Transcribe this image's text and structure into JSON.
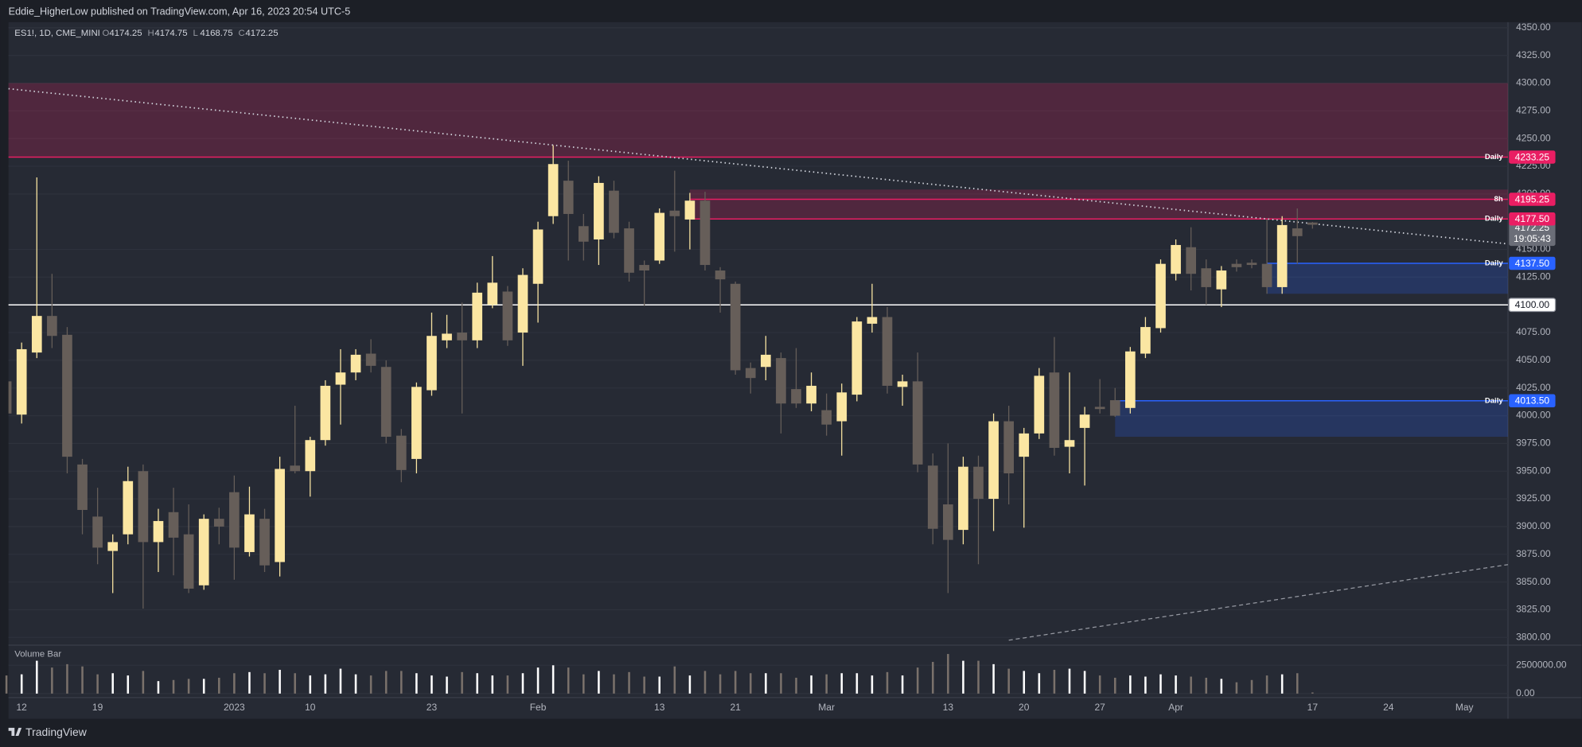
{
  "header": "Eddie_HigherLow published on TradingView.com, Apr 16, 2023 20:54 UTC-5",
  "footer": "TradingView",
  "chart_data": {
    "type": "candlestick",
    "symbol": "ES1!, 1D, CME_MINI",
    "ohlc_labels": [
      "O",
      "H",
      "L",
      "C"
    ],
    "categories": [
      null,
      "12",
      null,
      null,
      null,
      null,
      "19",
      null,
      null,
      null,
      null,
      null,
      null,
      null,
      null,
      "2023",
      null,
      null,
      null,
      null,
      "10",
      null,
      null,
      null,
      null,
      null,
      null,
      null,
      "23",
      null,
      null,
      null,
      null,
      null,
      null,
      "Feb",
      null,
      null,
      null,
      null,
      null,
      null,
      null,
      "13",
      null,
      null,
      null,
      null,
      "21",
      null,
      null,
      null,
      null,
      null,
      "Mar",
      null,
      null,
      null,
      null,
      null,
      null,
      null,
      "13",
      null,
      null,
      null,
      null,
      "20",
      null,
      null,
      null,
      null,
      "27",
      null,
      null,
      null,
      null,
      "Apr",
      null,
      null,
      null,
      null,
      null,
      null,
      null,
      null,
      "17",
      null,
      null,
      null,
      null,
      "24",
      null,
      null,
      null,
      null,
      "May"
    ],
    "open": [
      4031,
      4001,
      4057,
      4090,
      4073,
      3956,
      3909,
      3878,
      3893,
      3950,
      3886,
      3913,
      3893,
      3847,
      3907,
      3931,
      3877,
      3907,
      3868,
      3955,
      3950,
      3978,
      4028,
      4039,
      4056,
      4044,
      3982,
      3961,
      4023,
      4068,
      4075,
      4068,
      4100,
      4112,
      4075,
      4119,
      4180,
      4212,
      4171,
      4159,
      4203,
      4169,
      4136,
      4140,
      4185,
      4177,
      4194,
      4131,
      4119,
      4043,
      4044,
      4052,
      4024,
      4011,
      4005,
      3995,
      4019,
      4083,
      4089,
      4026,
      4031,
      3955,
      3920,
      3897,
      3954,
      3925,
      3995,
      3963,
      3984,
      4039,
      3972,
      3989,
      4008,
      4014,
      4007,
      4056,
      4079,
      4128,
      4152,
      4133,
      4114,
      4137,
      4138,
      4137,
      4116,
      4169,
      4174.25,
      null,
      null,
      null,
      null,
      null,
      null,
      null,
      null,
      null,
      null
    ],
    "high": [
      4035,
      4066,
      4215,
      4128,
      4080,
      3961,
      3935,
      3893,
      3954,
      3956,
      3916,
      3935,
      3920,
      3911,
      3917,
      3946,
      3936,
      3916,
      3963,
      4009,
      3981,
      4032,
      4060,
      4060,
      4069,
      4050,
      3988,
      4030,
      4093,
      4091,
      4102,
      4120,
      4144,
      4117,
      4133,
      4175,
      4244,
      4230,
      4182,
      4216,
      4212,
      4175,
      4140,
      4187,
      4221,
      4201,
      4202,
      4134,
      4121,
      4048,
      4072,
      4057,
      4061,
      4039,
      4020,
      4029,
      4089,
      4119,
      4098,
      4037,
      4057,
      3966,
      3975,
      3963,
      3964,
      4002,
      4009,
      3989,
      4043,
      4071,
      4039,
      4008,
      4033,
      4025,
      4062,
      4089,
      4141,
      4159,
      4170,
      4141,
      4135,
      4141,
      4141,
      4177,
      4180,
      4187,
      4174.75,
      null,
      null,
      null,
      null,
      null,
      null,
      null,
      null,
      null,
      null
    ],
    "low": [
      3998,
      3993,
      4052,
      4061,
      3948,
      3893,
      3866,
      3840,
      3884,
      3826,
      3859,
      3856,
      3840,
      3843,
      3884,
      3852,
      3873,
      3859,
      3855,
      3948,
      3927,
      3973,
      3992,
      4032,
      4039,
      3975,
      3940,
      3948,
      4018,
      4061,
      4002,
      4061,
      4097,
      4063,
      4045,
      4084,
      4173,
      4140,
      4140,
      4136,
      4160,
      4121,
      4099,
      4137,
      4148,
      4150,
      4131,
      4093,
      4037,
      4020,
      4032,
      3984,
      4007,
      4004,
      3982,
      3964,
      4013,
      4075,
      4020,
      4009,
      3949,
      3884,
      3840,
      3884,
      3866,
      3896,
      3920,
      3899,
      3979,
      3964,
      3948,
      3937,
      4002,
      3999,
      4002,
      4052,
      4075,
      4122,
      4113,
      4100,
      4098,
      4130,
      4133,
      4110,
      4110,
      4137,
      4168.75,
      null,
      null,
      null,
      null,
      null,
      null,
      null,
      null,
      null,
      null
    ],
    "close": [
      4002,
      4060,
      4090,
      4072,
      3963,
      3915,
      3881,
      3886,
      3941,
      3886,
      3905,
      3890,
      3844,
      3907,
      3900,
      3881,
      3911,
      3865,
      3952,
      3950,
      3978,
      4027,
      4039,
      4055,
      4045,
      3981,
      3951,
      4026,
      4072,
      4074,
      4068,
      4111,
      4120,
      4068,
      4127,
      4168,
      4227,
      4182,
      4157,
      4210,
      4165,
      4129,
      4131,
      4183,
      4180,
      4194,
      4136,
      4123,
      4041,
      4034,
      4055,
      4011,
      4011,
      4027,
      3992,
      4021,
      4085,
      4089,
      4027,
      4031,
      3956,
      3898,
      3888,
      3954,
      3925,
      3995,
      3948,
      3984,
      4036,
      3971,
      3978,
      4001,
      4006,
      4000,
      4058,
      4080,
      4137,
      4154,
      4128,
      4116,
      4131,
      4134,
      4136,
      4116,
      4172,
      4162,
      4172.25,
      null,
      null,
      null,
      null,
      null,
      null,
      null,
      null,
      null,
      null
    ],
    "up_color": "#fbe6a2",
    "down_color": "#665e59",
    "ylim": [
      3793,
      4355
    ],
    "yticks": [
      {
        "value": 4350,
        "label": "4350.00"
      },
      {
        "value": 4325,
        "label": "4325.00"
      },
      {
        "value": 4300,
        "label": "4300.00"
      },
      {
        "value": 4275,
        "label": "4275.00"
      },
      {
        "value": 4250,
        "label": "4250.00"
      },
      {
        "value": 4225,
        "label": "4225.00"
      },
      {
        "value": 4200,
        "label": "4200.00"
      },
      {
        "value": 4150,
        "label": "4150.00"
      },
      {
        "value": 4125,
        "label": "4125.00"
      },
      {
        "value": 4075,
        "label": "4075.00"
      },
      {
        "value": 4050,
        "label": "4050.00"
      },
      {
        "value": 4025,
        "label": "4025.00"
      },
      {
        "value": 4000,
        "label": "4000.00"
      },
      {
        "value": 3975,
        "label": "3975.00"
      },
      {
        "value": 3950,
        "label": "3950.00"
      },
      {
        "value": 3925,
        "label": "3925.00"
      },
      {
        "value": 3900,
        "label": "3900.00"
      },
      {
        "value": 3875,
        "label": "3875.00"
      },
      {
        "value": 3850,
        "label": "3850.00"
      },
      {
        "value": 3825,
        "label": "3825.00"
      },
      {
        "value": 3800,
        "label": "3800.00"
      }
    ],
    "grid": true,
    "countdown": "19:05:43",
    "volume": {
      "title": "Volume Bar",
      "values": [
        1600000,
        1700000,
        2900000,
        2300000,
        2600000,
        2400000,
        1700000,
        1800000,
        1600000,
        2000000,
        1100000,
        1200000,
        1300000,
        1300000,
        1400000,
        1800000,
        1900000,
        1800000,
        2100000,
        1800000,
        1600000,
        1700000,
        2200000,
        1700000,
        1600000,
        2000000,
        2000000,
        1800000,
        1600000,
        1500000,
        1900000,
        1800000,
        1600000,
        1600000,
        1800000,
        2300000,
        2500000,
        2300000,
        1700000,
        2000000,
        1700000,
        1900000,
        1500000,
        1500000,
        2400000,
        1600000,
        2000000,
        1700000,
        2000000,
        1800000,
        1800000,
        1800000,
        1400000,
        1600000,
        1700000,
        1800000,
        1800000,
        1600000,
        1900000,
        1600000,
        2300000,
        2800000,
        3500000,
        2900000,
        2900000,
        2600000,
        2200000,
        2000000,
        1800000,
        2100000,
        2200000,
        2000000,
        1600000,
        1400000,
        1600000,
        1500000,
        1700000,
        1600000,
        1500000,
        1400000,
        1300000,
        1000000,
        1200000,
        1600000,
        1700000,
        1800000,
        100000,
        null,
        null,
        null,
        null,
        null,
        null,
        null,
        null,
        null,
        null
      ],
      "up_color": "#ffffff",
      "down_color": "#7a716b",
      "ylim": [
        0,
        4100000
      ],
      "yticks": [
        {
          "value": 2500000,
          "label": "2500000.00"
        },
        {
          "value": 0,
          "label": "0.00"
        }
      ]
    },
    "zones": [
      {
        "start": 0,
        "top": 4300,
        "bottom": 4233.25,
        "color": "#e91e63"
      },
      {
        "start": 45,
        "top": 4204,
        "bottom": 4177.5,
        "color": "#e91e63"
      },
      {
        "start": 83,
        "top": 4137.5,
        "bottom": 4110,
        "color": "#2962ff"
      },
      {
        "start": 73,
        "top": 4013.5,
        "bottom": 3981,
        "color": "#2962ff"
      }
    ],
    "levels": [
      {
        "value": 4233.25,
        "label": "4233.25",
        "tag": "Daily",
        "start": 0,
        "color": "#e91e63"
      },
      {
        "value": 4195.25,
        "label": "4195.25",
        "tag": "8h",
        "start": 45,
        "color": "#e91e63"
      },
      {
        "value": 4177.5,
        "label": "4177.50",
        "tag": "Daily",
        "start": 45,
        "color": "#e91e63"
      },
      {
        "value": 4137.5,
        "label": "4137.50",
        "tag": "Daily",
        "start": 83,
        "color": "#2962ff"
      },
      {
        "value": 4013.5,
        "label": "4013.50",
        "tag": "Daily",
        "start": 73,
        "color": "#2962ff"
      },
      {
        "value": 4100,
        "label": "4100.00",
        "start": 0,
        "color": "#ffffff"
      }
    ],
    "trendlines": [
      {
        "x": [
          0.13,
          98.87
        ],
        "y": [
          4295,
          4155
        ],
        "style": "dotted",
        "color": "#d1d4dc"
      },
      {
        "x": [
          66,
          98.87
        ],
        "y": [
          3797.5,
          3865.7
        ],
        "style": "dashed",
        "color": "#9598a1"
      }
    ]
  }
}
